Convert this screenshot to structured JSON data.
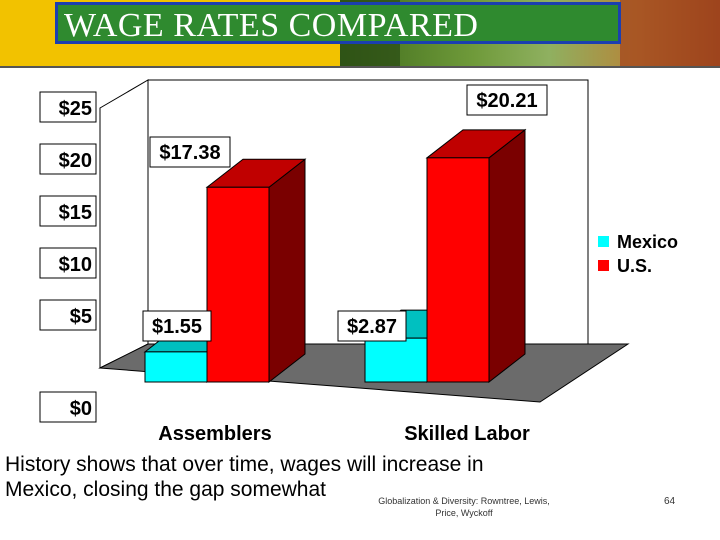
{
  "slide": {
    "title": "WAGE RATES COMPARED",
    "caption_line1": "History shows that over time, wages will increase in",
    "caption_line2": "Mexico, closing the gap somewhat",
    "footer_credit": "Globalization & Diversity: Rowntree, Lewis, Price, Wyckoff",
    "page_number": "64"
  },
  "chart_data": {
    "type": "bar",
    "categories": [
      "Assemblers",
      "Skilled Labor"
    ],
    "series": [
      {
        "name": "Mexico",
        "values": [
          1.55,
          2.87
        ],
        "color": "#00ffff",
        "top_color": "#00c0c0",
        "side_color": "#009f9f"
      },
      {
        "name": "U.S.",
        "values": [
          17.38,
          20.21
        ],
        "color": "#ff0000",
        "top_color": "#c00000",
        "side_color": "#7a0000"
      }
    ],
    "data_labels": [
      [
        "$1.55",
        "$2.87"
      ],
      [
        "$17.38",
        "$20.21"
      ]
    ],
    "y_ticks": [
      "$0",
      "$5",
      "$10",
      "$15",
      "$20",
      "$25"
    ],
    "ylim": [
      0,
      25
    ],
    "legend_position": "right",
    "grid": false
  }
}
